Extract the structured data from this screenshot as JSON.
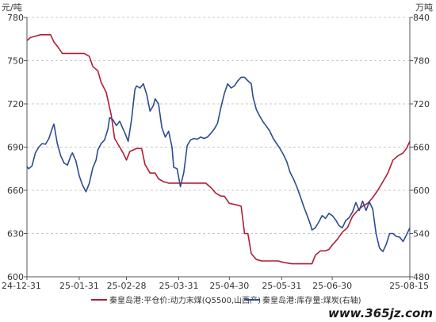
{
  "chart_data": {
    "type": "line",
    "title": "",
    "y_left_unit": "元/吨",
    "y_right_unit": "万吨",
    "y_left_range": [
      600,
      780
    ],
    "y_left_ticks": [
      "600",
      "630",
      "660",
      "690",
      "720",
      "750",
      "780"
    ],
    "y_right_range": [
      480,
      840
    ],
    "y_right_ticks": [
      "480",
      "540",
      "600",
      "660",
      "720",
      "780",
      "840"
    ],
    "x_range": [
      "2024-12-31",
      "2025-08-15"
    ],
    "x_ticks": [
      {
        "date": "2024-12-31",
        "label": "24-12-31"
      },
      {
        "date": "2025-01-31",
        "label": "25-01-31"
      },
      {
        "date": "2025-02-28",
        "label": "25-02-28"
      },
      {
        "date": "2025-03-31",
        "label": "25-03-31"
      },
      {
        "date": "2025-04-30",
        "label": "25-04-30"
      },
      {
        "date": "2025-05-31",
        "label": "25-05-31"
      },
      {
        "date": "2025-06-30",
        "label": "25-06-30"
      },
      {
        "date": "2025-08-15",
        "label": "25-08-15"
      }
    ],
    "grid": "horizontal-dashed",
    "legend_position": "bottom",
    "series": [
      {
        "name": "秦皇岛港:平仓价:动力末煤(Q5500,山西产)",
        "axis": "left",
        "color": "#b31b34",
        "points": [
          [
            "2024-12-31",
            764
          ],
          [
            "2025-01-02",
            766
          ],
          [
            "2025-01-05",
            767
          ],
          [
            "2025-01-08",
            768
          ],
          [
            "2025-01-14",
            768
          ],
          [
            "2025-01-16",
            763
          ],
          [
            "2025-01-18",
            760
          ],
          [
            "2025-01-21",
            755
          ],
          [
            "2025-01-26",
            755
          ],
          [
            "2025-02-03",
            755
          ],
          [
            "2025-02-06",
            753
          ],
          [
            "2025-02-08",
            746
          ],
          [
            "2025-02-11",
            743
          ],
          [
            "2025-02-13",
            735
          ],
          [
            "2025-02-16",
            728
          ],
          [
            "2025-02-19",
            712
          ],
          [
            "2025-02-21",
            696
          ],
          [
            "2025-02-24",
            690
          ],
          [
            "2025-02-26",
            686
          ],
          [
            "2025-02-28",
            681
          ],
          [
            "2025-03-02",
            687
          ],
          [
            "2025-03-04",
            688
          ],
          [
            "2025-03-06",
            689
          ],
          [
            "2025-03-09",
            689
          ],
          [
            "2025-03-11",
            678
          ],
          [
            "2025-03-14",
            672
          ],
          [
            "2025-03-17",
            672
          ],
          [
            "2025-03-19",
            668
          ],
          [
            "2025-03-22",
            666
          ],
          [
            "2025-03-25",
            665
          ],
          [
            "2025-03-28",
            665
          ],
          [
            "2025-04-04",
            665
          ],
          [
            "2025-04-11",
            665
          ],
          [
            "2025-04-16",
            665
          ],
          [
            "2025-04-19",
            662
          ],
          [
            "2025-04-22",
            658
          ],
          [
            "2025-04-25",
            656
          ],
          [
            "2025-04-27",
            656
          ],
          [
            "2025-04-30",
            651
          ],
          [
            "2025-05-04",
            650
          ],
          [
            "2025-05-07",
            649
          ],
          [
            "2025-05-09",
            630
          ],
          [
            "2025-05-11",
            630
          ],
          [
            "2025-05-13",
            616
          ],
          [
            "2025-05-16",
            612
          ],
          [
            "2025-05-19",
            611
          ],
          [
            "2025-05-23",
            611
          ],
          [
            "2025-05-29",
            611
          ],
          [
            "2025-06-01",
            610
          ],
          [
            "2025-06-06",
            609
          ],
          [
            "2025-06-12",
            609
          ],
          [
            "2025-06-18",
            609
          ],
          [
            "2025-06-20",
            615
          ],
          [
            "2025-06-23",
            618
          ],
          [
            "2025-06-26",
            618
          ],
          [
            "2025-06-28",
            619
          ],
          [
            "2025-06-30",
            622
          ],
          [
            "2025-07-03",
            626
          ],
          [
            "2025-07-06",
            631
          ],
          [
            "2025-07-09",
            634
          ],
          [
            "2025-07-12",
            642
          ],
          [
            "2025-07-15",
            646
          ],
          [
            "2025-07-18",
            649
          ],
          [
            "2025-07-21",
            651
          ],
          [
            "2025-07-24",
            655
          ],
          [
            "2025-07-27",
            660
          ],
          [
            "2025-07-30",
            666
          ],
          [
            "2025-08-02",
            672
          ],
          [
            "2025-08-05",
            681
          ],
          [
            "2025-08-08",
            684
          ],
          [
            "2025-08-11",
            686
          ],
          [
            "2025-08-13",
            689
          ],
          [
            "2025-08-15",
            694
          ]
        ]
      },
      {
        "name": "秦皇岛港:库存量:煤炭(右轴)",
        "axis": "right",
        "color": "#2c4b8e",
        "points": [
          [
            "2024-12-31",
            633
          ],
          [
            "2025-01-01",
            630
          ],
          [
            "2025-01-03",
            634
          ],
          [
            "2025-01-05",
            652
          ],
          [
            "2025-01-07",
            660
          ],
          [
            "2025-01-09",
            665
          ],
          [
            "2025-01-11",
            664
          ],
          [
            "2025-01-13",
            672
          ],
          [
            "2025-01-15",
            686
          ],
          [
            "2025-01-16",
            692
          ],
          [
            "2025-01-18",
            665
          ],
          [
            "2025-01-20",
            648
          ],
          [
            "2025-01-22",
            638
          ],
          [
            "2025-01-24",
            635
          ],
          [
            "2025-01-26",
            648
          ],
          [
            "2025-01-27",
            652
          ],
          [
            "2025-01-29",
            641
          ],
          [
            "2025-01-31",
            620
          ],
          [
            "2025-02-02",
            607
          ],
          [
            "2025-02-04",
            598
          ],
          [
            "2025-02-06",
            610
          ],
          [
            "2025-02-08",
            631
          ],
          [
            "2025-02-10",
            642
          ],
          [
            "2025-02-11",
            656
          ],
          [
            "2025-02-13",
            665
          ],
          [
            "2025-02-15",
            670
          ],
          [
            "2025-02-17",
            685
          ],
          [
            "2025-02-18",
            701
          ],
          [
            "2025-02-20",
            698
          ],
          [
            "2025-02-22",
            690
          ],
          [
            "2025-02-24",
            696
          ],
          [
            "2025-02-26",
            685
          ],
          [
            "2025-02-27",
            680
          ],
          [
            "2025-03-01",
            668
          ],
          [
            "2025-03-03",
            698
          ],
          [
            "2025-03-05",
            740
          ],
          [
            "2025-03-06",
            745
          ],
          [
            "2025-03-08",
            742
          ],
          [
            "2025-03-10",
            748
          ],
          [
            "2025-03-12",
            733
          ],
          [
            "2025-03-14",
            710
          ],
          [
            "2025-03-16",
            718
          ],
          [
            "2025-03-17",
            727
          ],
          [
            "2025-03-19",
            720
          ],
          [
            "2025-03-21",
            687
          ],
          [
            "2025-03-23",
            674
          ],
          [
            "2025-03-25",
            682
          ],
          [
            "2025-03-27",
            660
          ],
          [
            "2025-03-28",
            632
          ],
          [
            "2025-03-30",
            630
          ],
          [
            "2025-04-01",
            605
          ],
          [
            "2025-04-03",
            625
          ],
          [
            "2025-04-05",
            662
          ],
          [
            "2025-04-07",
            670
          ],
          [
            "2025-04-09",
            672
          ],
          [
            "2025-04-11",
            671
          ],
          [
            "2025-04-13",
            674
          ],
          [
            "2025-04-15",
            672
          ],
          [
            "2025-04-17",
            674
          ],
          [
            "2025-04-19",
            679
          ],
          [
            "2025-04-21",
            685
          ],
          [
            "2025-04-23",
            693
          ],
          [
            "2025-04-25",
            715
          ],
          [
            "2025-04-27",
            734
          ],
          [
            "2025-04-29",
            748
          ],
          [
            "2025-05-01",
            742
          ],
          [
            "2025-05-03",
            745
          ],
          [
            "2025-05-05",
            752
          ],
          [
            "2025-05-07",
            757
          ],
          [
            "2025-05-09",
            757
          ],
          [
            "2025-05-11",
            752
          ],
          [
            "2025-05-13",
            748
          ],
          [
            "2025-05-14",
            730
          ],
          [
            "2025-05-16",
            712
          ],
          [
            "2025-05-18",
            703
          ],
          [
            "2025-05-20",
            695
          ],
          [
            "2025-05-22",
            689
          ],
          [
            "2025-05-24",
            682
          ],
          [
            "2025-05-26",
            672
          ],
          [
            "2025-05-28",
            665
          ],
          [
            "2025-05-30",
            658
          ],
          [
            "2025-06-01",
            650
          ],
          [
            "2025-06-03",
            640
          ],
          [
            "2025-06-05",
            625
          ],
          [
            "2025-06-07",
            616
          ],
          [
            "2025-06-09",
            605
          ],
          [
            "2025-06-11",
            592
          ],
          [
            "2025-06-13",
            578
          ],
          [
            "2025-06-15",
            566
          ],
          [
            "2025-06-17",
            553
          ],
          [
            "2025-06-18",
            545
          ],
          [
            "2025-06-20",
            548
          ],
          [
            "2025-06-22",
            556
          ],
          [
            "2025-06-24",
            565
          ],
          [
            "2025-06-26",
            561
          ],
          [
            "2025-06-28",
            568
          ],
          [
            "2025-06-30",
            565
          ],
          [
            "2025-07-02",
            559
          ],
          [
            "2025-07-04",
            551
          ],
          [
            "2025-07-06",
            548
          ],
          [
            "2025-07-08",
            558
          ],
          [
            "2025-07-10",
            562
          ],
          [
            "2025-07-12",
            570
          ],
          [
            "2025-07-14",
            583
          ],
          [
            "2025-07-16",
            572
          ],
          [
            "2025-07-18",
            585
          ],
          [
            "2025-07-20",
            572
          ],
          [
            "2025-07-22",
            584
          ],
          [
            "2025-07-24",
            574
          ],
          [
            "2025-07-26",
            540
          ],
          [
            "2025-07-28",
            520
          ],
          [
            "2025-07-30",
            515
          ],
          [
            "2025-08-01",
            525
          ],
          [
            "2025-08-03",
            540
          ],
          [
            "2025-08-05",
            540
          ],
          [
            "2025-08-07",
            536
          ],
          [
            "2025-08-09",
            535
          ],
          [
            "2025-08-11",
            529
          ],
          [
            "2025-08-13",
            538
          ],
          [
            "2025-08-15",
            548
          ]
        ]
      }
    ]
  },
  "watermark": "www.365jz.com"
}
